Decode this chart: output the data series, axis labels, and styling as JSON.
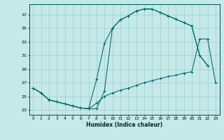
{
  "xlabel": "Humidex (Indice chaleur)",
  "bg_color": "#c5e8e8",
  "grid_color": "#9ecece",
  "line_color": "#006868",
  "xlim": [
    -0.5,
    23.5
  ],
  "ylim": [
    22.3,
    38.5
  ],
  "yticks": [
    23,
    25,
    27,
    29,
    31,
    33,
    35,
    37
  ],
  "xticks": [
    0,
    1,
    2,
    3,
    4,
    5,
    6,
    7,
    8,
    9,
    10,
    11,
    12,
    13,
    14,
    15,
    16,
    17,
    18,
    19,
    20,
    21,
    22,
    23
  ],
  "line1_x": [
    0,
    1,
    2,
    3,
    4,
    5,
    6,
    7,
    8,
    9,
    10,
    11,
    12,
    13,
    14,
    15,
    16,
    17,
    18,
    19,
    20,
    21,
    22
  ],
  "line1_y": [
    26.2,
    25.5,
    24.5,
    24.2,
    23.9,
    23.6,
    23.3,
    23.2,
    23.2,
    25.8,
    35.0,
    36.2,
    36.8,
    37.5,
    37.8,
    37.8,
    37.3,
    36.8,
    36.3,
    35.8,
    35.3,
    31.0,
    29.5
  ],
  "line2_x": [
    0,
    1,
    2,
    3,
    4,
    5,
    6,
    7,
    8,
    9,
    10,
    11,
    12,
    13,
    14,
    15,
    16,
    17,
    18,
    19,
    20,
    21,
    22
  ],
  "line2_y": [
    26.2,
    25.5,
    24.5,
    24.2,
    23.9,
    23.6,
    23.3,
    23.2,
    27.5,
    32.8,
    35.0,
    36.2,
    36.8,
    37.5,
    37.8,
    37.8,
    37.3,
    36.8,
    36.3,
    35.8,
    35.3,
    31.0,
    29.5
  ],
  "line3_x": [
    0,
    1,
    2,
    3,
    4,
    5,
    6,
    7,
    8,
    9,
    10,
    11,
    12,
    13,
    14,
    15,
    16,
    17,
    18,
    19,
    20,
    21,
    22,
    23
  ],
  "line3_y": [
    26.2,
    25.5,
    24.5,
    24.2,
    23.9,
    23.6,
    23.3,
    23.2,
    24.0,
    25.0,
    25.5,
    25.9,
    26.2,
    26.6,
    27.0,
    27.3,
    27.6,
    27.9,
    28.1,
    28.4,
    28.6,
    33.4,
    33.4,
    27.0
  ]
}
